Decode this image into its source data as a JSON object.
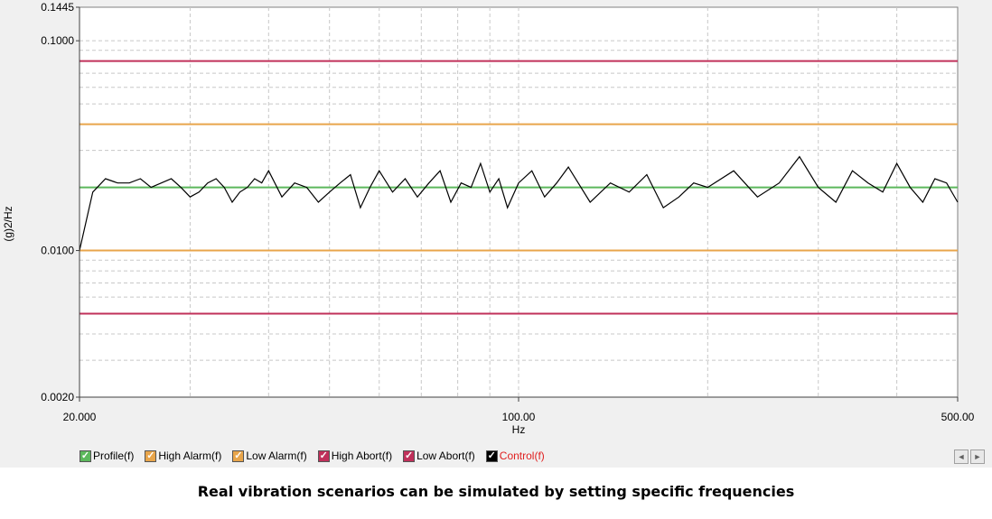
{
  "chart_data": {
    "type": "line",
    "title": "",
    "xlabel": "Hz",
    "ylabel": "(g)2/Hz",
    "x_scale": "log",
    "y_scale": "log",
    "xlim": [
      20,
      500
    ],
    "ylim": [
      0.002,
      0.1445
    ],
    "x_tick_labels": [
      "20.000",
      "100.00",
      "500.00"
    ],
    "x_tick_values": [
      20,
      100,
      500
    ],
    "y_tick_labels": [
      "0.1445",
      "0.1000",
      "0.0100",
      "0.0020"
    ],
    "y_tick_values": [
      0.1445,
      0.1,
      0.01,
      0.002
    ],
    "grid": true,
    "legend_position": "bottom",
    "series": [
      {
        "name": "Profile(f)",
        "color": "#5cb85c",
        "kind": "constant",
        "y": 0.02
      },
      {
        "name": "High Alarm(f)",
        "color": "#e8a54b",
        "kind": "constant",
        "y": 0.04
      },
      {
        "name": "Low Alarm(f)",
        "color": "#e8a54b",
        "kind": "constant",
        "y": 0.01
      },
      {
        "name": "High Abort(f)",
        "color": "#c0305a",
        "kind": "constant",
        "y": 0.08
      },
      {
        "name": "Low Abort(f)",
        "color": "#c0305a",
        "kind": "constant",
        "y": 0.005
      },
      {
        "name": "Control(f)",
        "color": "#000000",
        "kind": "measured",
        "x": [
          20,
          21,
          22,
          23,
          24,
          25,
          26,
          27,
          28,
          29,
          30,
          31,
          32,
          33,
          34,
          35,
          36,
          37,
          38,
          39,
          40,
          42,
          44,
          46,
          48,
          50,
          52,
          54,
          56,
          58,
          60,
          63,
          66,
          69,
          72,
          75,
          78,
          81,
          84,
          87,
          90,
          93,
          96,
          100,
          105,
          110,
          115,
          120,
          130,
          140,
          150,
          160,
          170,
          180,
          190,
          200,
          220,
          240,
          260,
          280,
          300,
          320,
          340,
          360,
          380,
          400,
          420,
          440,
          460,
          480,
          500
        ],
        "y": [
          0.01,
          0.019,
          0.022,
          0.021,
          0.021,
          0.022,
          0.02,
          0.021,
          0.022,
          0.02,
          0.018,
          0.019,
          0.021,
          0.022,
          0.02,
          0.017,
          0.019,
          0.02,
          0.022,
          0.021,
          0.024,
          0.018,
          0.021,
          0.02,
          0.017,
          0.019,
          0.021,
          0.023,
          0.016,
          0.02,
          0.024,
          0.019,
          0.022,
          0.018,
          0.021,
          0.024,
          0.017,
          0.021,
          0.02,
          0.026,
          0.019,
          0.022,
          0.016,
          0.021,
          0.024,
          0.018,
          0.021,
          0.025,
          0.017,
          0.021,
          0.019,
          0.023,
          0.016,
          0.018,
          0.021,
          0.02,
          0.024,
          0.018,
          0.021,
          0.028,
          0.02,
          0.017,
          0.024,
          0.021,
          0.019,
          0.026,
          0.02,
          0.017,
          0.022,
          0.021,
          0.017
        ]
      }
    ]
  },
  "legend": [
    {
      "label": "Profile(f)",
      "color": "#5cb85c",
      "text_color": "#000000"
    },
    {
      "label": "High Alarm(f)",
      "color": "#e8a54b",
      "text_color": "#000000"
    },
    {
      "label": "Low Alarm(f)",
      "color": "#e8a54b",
      "text_color": "#000000"
    },
    {
      "label": "High Abort(f)",
      "color": "#c0305a",
      "text_color": "#000000"
    },
    {
      "label": "Low Abort(f)",
      "color": "#c0305a",
      "text_color": "#000000"
    },
    {
      "label": "Control(f)",
      "color": "#000000",
      "text_color": "#e02020"
    }
  ],
  "scroll": {
    "left_icon": "◄",
    "right_icon": "►"
  },
  "caption": "Real vibration scenarios can be simulated by setting specific frequencies"
}
